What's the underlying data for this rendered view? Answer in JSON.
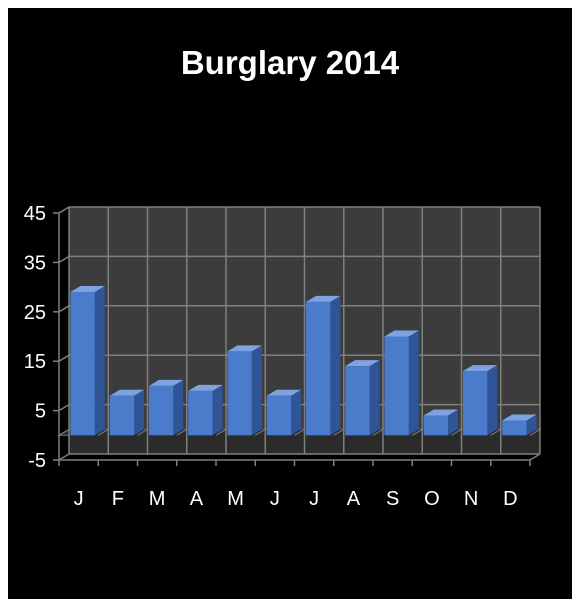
{
  "chart_data": {
    "type": "bar",
    "title": "Burglary 2014",
    "xlabel": "",
    "ylabel": "",
    "categories": [
      "J",
      "F",
      "M",
      "A",
      "M",
      "J",
      "J",
      "A",
      "S",
      "O",
      "N",
      "D"
    ],
    "values": [
      29,
      8,
      10,
      9,
      17,
      8,
      27,
      14,
      20,
      4,
      13,
      3
    ],
    "ylim": [
      -5,
      45
    ],
    "yticks": [
      "45",
      "35",
      "25",
      "15",
      "5",
      "-5"
    ],
    "grid": true,
    "legend": "none",
    "colors": {
      "background": "#000000",
      "wall": "#3c3c3c",
      "floor": "#262626",
      "grid": "#7f7f7f",
      "bar_front": "#4a7ccb",
      "bar_side": "#2f5597",
      "bar_top": "#7ea3e0",
      "text": "#ffffff"
    }
  }
}
